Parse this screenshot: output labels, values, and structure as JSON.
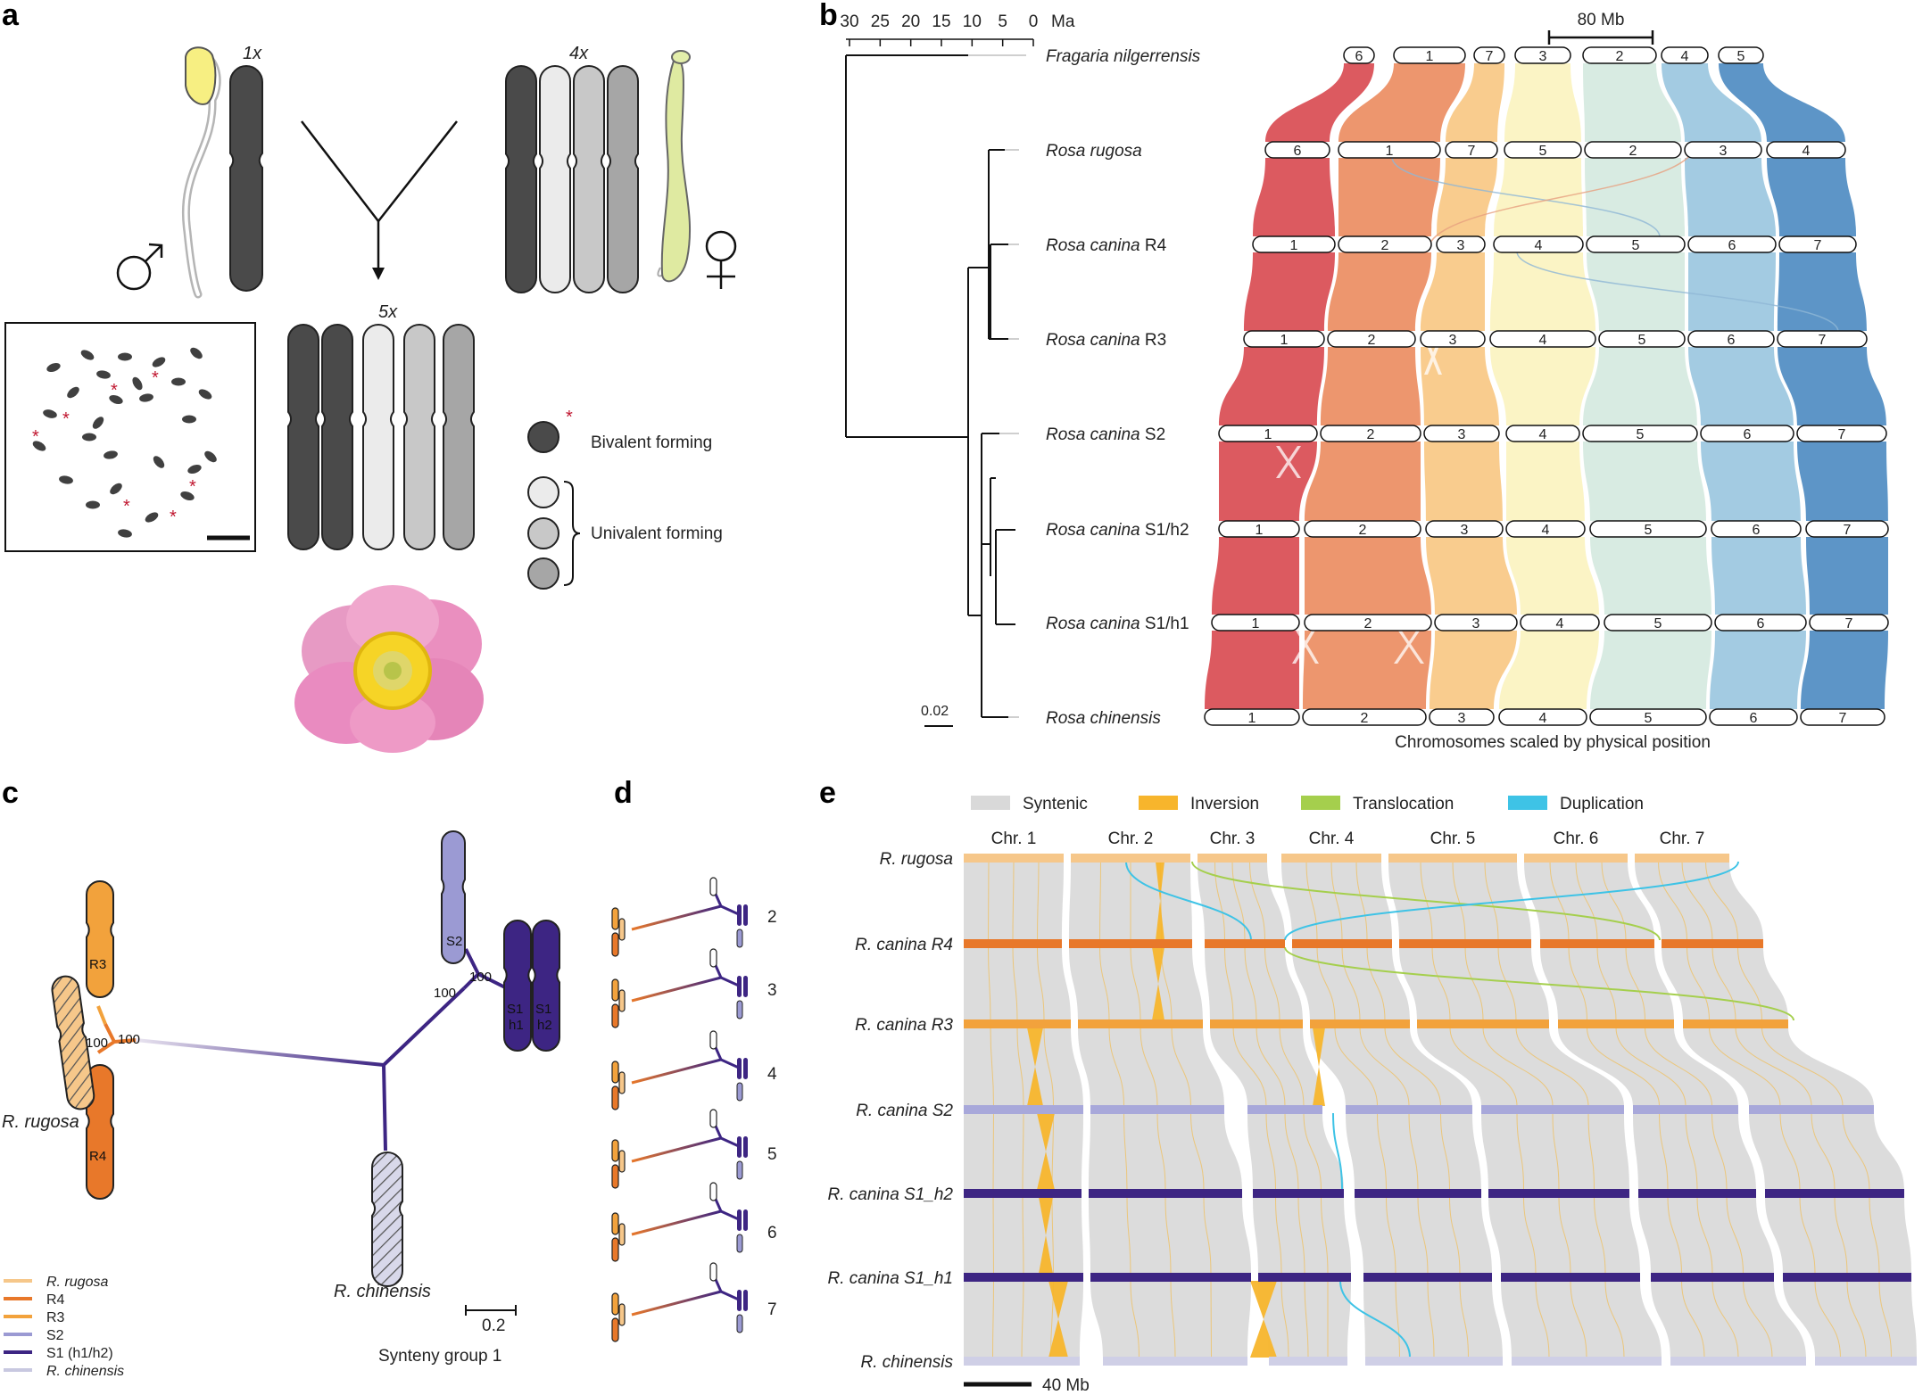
{
  "panels": {
    "a": "a",
    "b": "b",
    "c": "c",
    "d": "d",
    "e": "e"
  },
  "panel_a": {
    "ploidy_1x": "1x",
    "ploidy_4x": "4x",
    "ploidy_5x": "5x",
    "legend_bivalent": "Bivalent forming",
    "legend_univalent": "Univalent forming",
    "male_symbol": "♂",
    "female_symbol": "♀",
    "colors": {
      "dark": "#4a4a4a",
      "light1": "#ebebeb",
      "light2": "#c8c8c8",
      "light3": "#a6a6a6",
      "pollen": "#f7ef82",
      "style": "#d8e59a",
      "flower": "#e67fb5",
      "center": "#f5d20c"
    }
  },
  "panel_b": {
    "time_axis_unit": "Ma",
    "time_ticks": [
      "30",
      "25",
      "20",
      "15",
      "10",
      "5",
      "0"
    ],
    "scale_bar_mb": "80 Mb",
    "tree_scale": "0.02",
    "xlabel": "Chromosomes scaled by physical position",
    "species": [
      {
        "name": "Fragaria nilgerrensis",
        "suffix": "",
        "order": [
          "6",
          "1",
          "7",
          "3",
          "2",
          "4",
          "5"
        ]
      },
      {
        "name": "Rosa rugosa",
        "suffix": "",
        "order": [
          "6",
          "1",
          "7",
          "5",
          "2",
          "3",
          "4"
        ]
      },
      {
        "name": "Rosa canina",
        "suffix": " R4",
        "order": [
          "1",
          "2",
          "3",
          "4",
          "5",
          "6",
          "7"
        ]
      },
      {
        "name": "Rosa canina",
        "suffix": " R3",
        "order": [
          "1",
          "2",
          "3",
          "4",
          "5",
          "6",
          "7"
        ]
      },
      {
        "name": "Rosa canina",
        "suffix": " S2",
        "order": [
          "1",
          "2",
          "3",
          "4",
          "5",
          "6",
          "7"
        ]
      },
      {
        "name": "Rosa canina",
        "suffix": " S1/h2",
        "order": [
          "1",
          "2",
          "3",
          "4",
          "5",
          "6",
          "7"
        ]
      },
      {
        "name": "Rosa canina",
        "suffix": " S1/h1",
        "order": [
          "1",
          "2",
          "3",
          "4",
          "5",
          "6",
          "7"
        ]
      },
      {
        "name": "Rosa chinensis",
        "suffix": "",
        "order": [
          "1",
          "2",
          "3",
          "4",
          "5",
          "6",
          "7"
        ]
      }
    ],
    "group_colors": [
      "#d94c52",
      "#ec8d62",
      "#f8c884",
      "#fbf3c0",
      "#d5e9e0",
      "#9bc7e0",
      "#4f8cc2"
    ]
  },
  "panel_c": {
    "bootstrap": [
      "100",
      "100",
      "100",
      "100"
    ],
    "chrom_labels": {
      "r3": "R3",
      "r4": "R4",
      "s2": "S2",
      "s1h1_a": "S1",
      "s1h1_b": "h1",
      "s1h2_a": "S1",
      "s1h2_b": "h2"
    },
    "taxon_rugosa": "R. rugosa",
    "taxon_chinensis": "R. chinensis",
    "scale": "0.2",
    "caption": "Synteny group 1",
    "legend": [
      {
        "label": "R. rugosa",
        "italic": true,
        "color": "#f6c78a"
      },
      {
        "label": "R4",
        "italic": false,
        "color": "#e8782a"
      },
      {
        "label": "R3",
        "italic": false,
        "color": "#f2a23c"
      },
      {
        "label": "S2",
        "italic": false,
        "color": "#9b9ad3"
      },
      {
        "label": "S1 (h1/h2)",
        "italic": false,
        "color": "#3d2583"
      },
      {
        "label": "R. chinensis",
        "italic": true,
        "color": "#c8c8e0"
      }
    ]
  },
  "panel_d": {
    "groups": [
      "2",
      "3",
      "4",
      "5",
      "6",
      "7"
    ]
  },
  "panel_e": {
    "legend": [
      {
        "label": "Syntenic",
        "color": "#d9d9d9"
      },
      {
        "label": "Inversion",
        "color": "#f7b52c"
      },
      {
        "label": "Translocation",
        "color": "#a5cf4d"
      },
      {
        "label": "Duplication",
        "color": "#3ec3e6"
      }
    ],
    "chromosomes": [
      "Chr. 1",
      "Chr. 2",
      "Chr. 3",
      "Chr. 4",
      "Chr. 5",
      "Chr. 6",
      "Chr. 7"
    ],
    "genomes": [
      {
        "label": "R. rugosa",
        "color": "#f6c78a"
      },
      {
        "label": "R. canina R4",
        "color": "#e8782a"
      },
      {
        "label": "R. canina R3",
        "color": "#f2a23c"
      },
      {
        "label": "R. canina S2",
        "color": "#a8a8da"
      },
      {
        "label": "R. canina S1_h2",
        "color": "#3d2583"
      },
      {
        "label": "R. canina S1_h1",
        "color": "#3d2583"
      },
      {
        "label": "R. chinensis",
        "color": "#cfcfe6"
      }
    ],
    "scale_bar": "40 Mb"
  }
}
